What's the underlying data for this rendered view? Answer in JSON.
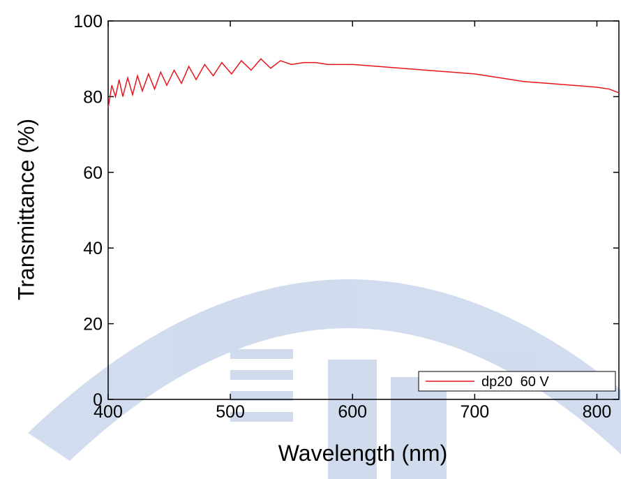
{
  "chart_data": {
    "type": "line",
    "x_label": "Wavelength (nm)",
    "y_label": "Transmittance (%)",
    "x": [
      400,
      403,
      406,
      409,
      412,
      416,
      420,
      424,
      428,
      433,
      438,
      443,
      448,
      454,
      460,
      466,
      472,
      479,
      486,
      493,
      501,
      509,
      517,
      525,
      533,
      541,
      550,
      560,
      570,
      580,
      600,
      620,
      640,
      660,
      680,
      700,
      720,
      740,
      760,
      780,
      800,
      810,
      818
    ],
    "series": [
      {
        "name": "dp20  60 V",
        "color": "#e8141b",
        "values": [
          77,
          83,
          80,
          84.5,
          80,
          85,
          80.5,
          85.5,
          81.5,
          86,
          82,
          86.5,
          83,
          87,
          83.5,
          88,
          84.5,
          88.5,
          85.5,
          89,
          86,
          89.5,
          87,
          90,
          87.5,
          89.5,
          88.5,
          89,
          89,
          88.5,
          88.5,
          88,
          87.5,
          87,
          86.5,
          86,
          85,
          84,
          83.5,
          83,
          82.5,
          82,
          81
        ]
      }
    ],
    "xlim": [
      400,
      818
    ],
    "xticks": [
      400,
      500,
      600,
      700,
      800
    ],
    "ylim": [
      0,
      100
    ],
    "yticks": [
      0,
      20,
      40,
      60,
      80,
      100
    ],
    "legend": "lower right"
  }
}
